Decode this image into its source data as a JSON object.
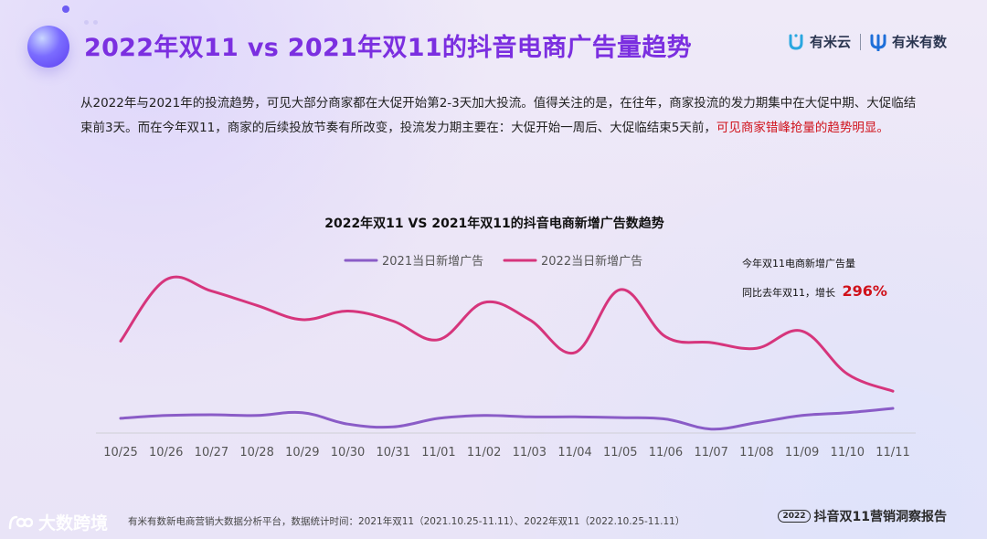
{
  "header": {
    "title": "2022年双11 vs 2021年双11的抖音电商广告量趋势",
    "brand_left": "有米云",
    "brand_right": "有米有数"
  },
  "intro": {
    "text": "从2022年与2021年的投流趋势，可见大部分商家都在大促开始第2-3天加大投流。值得关注的是，在往年，商家投流的发力期集中在大促中期、大促临结束前3天。而在今年双11，商家的后续投放节奏有所改变，投流发力期主要在：大促开始一周后、大促临结束5天前，",
    "highlight": "可见商家错峰抢量的趋势明显。"
  },
  "annotation": {
    "line1": "今年双11电商新增广告量",
    "line2_prefix": "同比去年双11，增长",
    "value": "296%"
  },
  "chart_data": {
    "type": "line",
    "title": "2022年双11 VS 2021年双11的抖音电商新增广告数趋势",
    "xlabel": "",
    "ylabel": "",
    "categories": [
      "10/25",
      "10/26",
      "10/27",
      "10/28",
      "10/29",
      "10/30",
      "10/31",
      "11/01",
      "11/02",
      "11/03",
      "11/04",
      "11/05",
      "11/06",
      "11/07",
      "11/08",
      "11/09",
      "11/10",
      "11/11"
    ],
    "series": [
      {
        "name": "2021当日新增广告",
        "color": "#8a5cc7",
        "values": [
          9,
          11,
          11.5,
          11,
          13,
          5,
          3,
          9,
          11,
          10,
          10,
          9.5,
          8.5,
          1.5,
          6,
          11,
          13,
          16
        ]
      },
      {
        "name": "2022当日新增广告",
        "color": "#d6357c",
        "values": [
          63,
          106,
          98,
          88,
          78,
          84,
          77,
          64,
          90,
          78,
          55,
          99,
          66,
          62,
          58,
          70,
          40,
          28
        ]
      }
    ],
    "ylim": [
      0,
      115
    ],
    "grid": false,
    "legend": "top"
  },
  "footer": {
    "logo_text": "大数跨境",
    "note": "有米有数新电商营销大数据分析平台，数据统计时间：2021年双11（2021.10.25-11.11）、2022年双11（2022.10.25-11.11）",
    "year_badge": "2022",
    "report": "抖音双11营销洞察报告"
  },
  "colors": {
    "title": "#7b2fe0",
    "highlight": "#d0121b",
    "series_2021": "#8a5cc7",
    "series_2022": "#d6357c"
  }
}
